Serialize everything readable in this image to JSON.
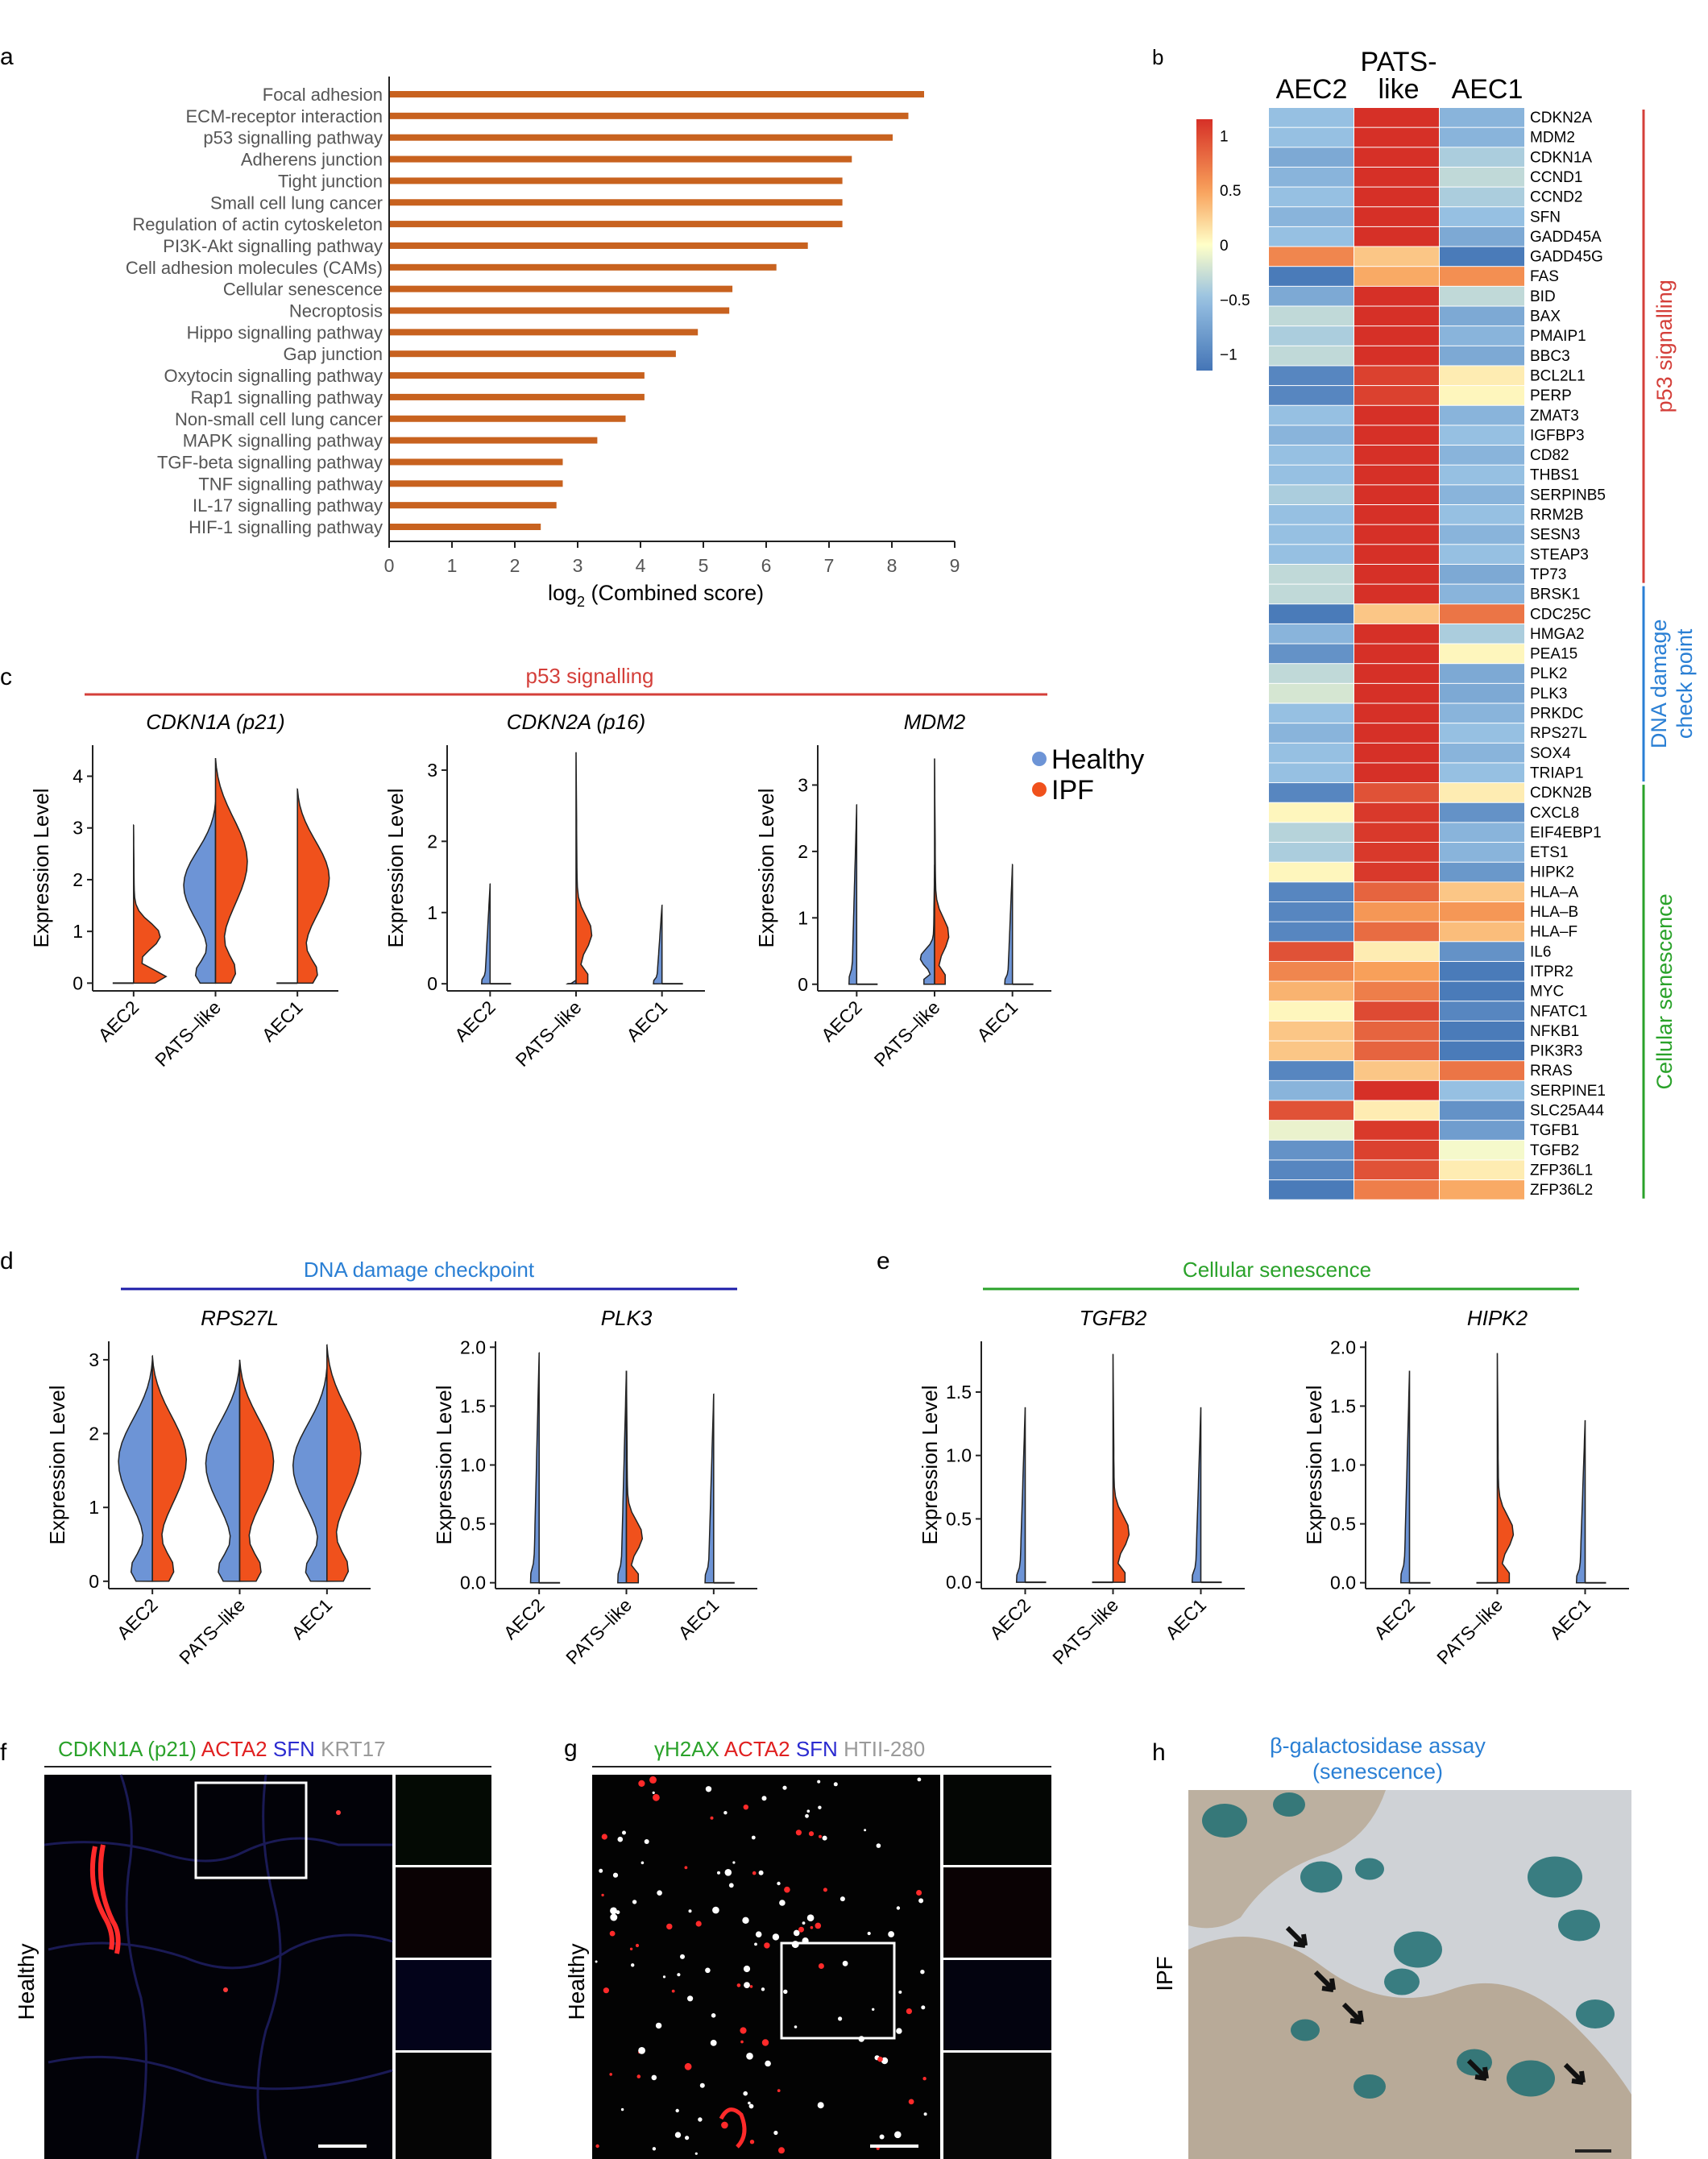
{
  "panels": {
    "a": {
      "letter": "a"
    },
    "b": {
      "letter": "b"
    },
    "c": {
      "letter": "c"
    },
    "d": {
      "letter": "d"
    },
    "e": {
      "letter": "e"
    },
    "f": {
      "letter": "f"
    },
    "g": {
      "letter": "g"
    },
    "h": {
      "letter": "h"
    }
  },
  "colors": {
    "bar": "#c8621f",
    "healthy": "#6d94d6",
    "ipf": "#f0511c",
    "red_line": "#d43f3a",
    "blue_line": "#1c1ca8",
    "green_line": "#2aa22a",
    "blue_text": "#2a7fd4",
    "green_text": "#2aa22a",
    "red_text": "#d43f3a"
  },
  "chart_data": [
    {
      "id": "a",
      "type": "bar",
      "orientation": "horizontal",
      "categories": [
        "Focal adhesion",
        "ECM-receptor interaction",
        "p53 signalling pathway",
        "Adherens junction",
        "Tight junction",
        "Small cell lung cancer",
        "Regulation of actin cytoskeleton",
        "PI3K-Akt signalling pathway",
        "Cell adhesion molecules (CAMs)",
        "Cellular senescence",
        "Necroptosis",
        "Hippo signalling pathway",
        "Gap junction",
        "Oxytocin signalling pathway",
        "Rap1 signalling pathway",
        "Non-small cell lung cancer",
        "MAPK signalling pathway",
        "TGF-beta signalling pathway",
        "TNF signalling pathway",
        "IL-17 signalling pathway",
        "HIF-1 signalling pathway"
      ],
      "values": [
        8.5,
        8.25,
        8.0,
        7.35,
        7.2,
        7.2,
        7.2,
        6.65,
        6.15,
        5.45,
        5.4,
        4.9,
        4.55,
        4.05,
        4.05,
        3.75,
        3.3,
        2.75,
        2.75,
        2.65,
        2.4
      ],
      "xlabel": "log",
      "xlabel_sub": "2",
      "xlabel_rest": " (Combined score)",
      "xlim": [
        0,
        9
      ],
      "xticks": [
        "0",
        "1",
        "2",
        "3",
        "4",
        "5",
        "6",
        "7",
        "8",
        "9"
      ]
    },
    {
      "id": "b",
      "type": "heatmap",
      "columns": [
        "AEC2",
        "PATS-\nlike",
        "AEC1"
      ],
      "column_line1": [
        "AEC2",
        "PATS-",
        "AEC1"
      ],
      "column_line2": [
        "",
        "like",
        ""
      ],
      "legend_ticks": [
        "1",
        "0.5",
        "0",
        "−0.5",
        "−1"
      ],
      "legend_range": [
        -1.15,
        1.15
      ],
      "rows": [
        "CDKN2A",
        "MDM2",
        "CDKN1A",
        "CCND1",
        "CCND2",
        "SFN",
        "GADD45A",
        "GADD45G",
        "FAS",
        "BID",
        "BAX",
        "PMAIP1",
        "BBC3",
        "BCL2L1",
        "PERP",
        "ZMAT3",
        "IGFBP3",
        "CD82",
        "THBS1",
        "SERPINB5",
        "RRM2B",
        "SESN3",
        "STEAP3",
        "TP73",
        "BRSK1",
        "CDC25C",
        "HMGA2",
        "PEA15",
        "PLK2",
        "PLK3",
        "PRKDC",
        "RPS27L",
        "SOX4",
        "TRIAP1",
        "CDKN2B",
        "CXCL8",
        "EIF4EBP1",
        "ETS1",
        "HIPK2",
        "HLA–A",
        "HLA–B",
        "HLA–F",
        "IL6",
        "ITPR2",
        "MYC",
        "NFATC1",
        "NFKB1",
        "PIK3R3",
        "RRAS",
        "SERPINE1",
        "SLC25A44",
        "TGFB1",
        "TGFB2",
        "ZFP36L1",
        "ZFP36L2"
      ],
      "values": [
        [
          -0.5,
          1.15,
          -0.6
        ],
        [
          -0.5,
          1.15,
          -0.6
        ],
        [
          -0.7,
          1.15,
          -0.4
        ],
        [
          -0.6,
          1.15,
          -0.3
        ],
        [
          -0.5,
          1.15,
          -0.4
        ],
        [
          -0.6,
          1.15,
          -0.5
        ],
        [
          -0.5,
          1.15,
          -0.7
        ],
        [
          0.65,
          0.3,
          -1.1
        ],
        [
          -1.1,
          0.45,
          0.6
        ],
        [
          -0.7,
          1.15,
          -0.3
        ],
        [
          -0.3,
          1.15,
          -0.7
        ],
        [
          -0.4,
          1.15,
          -0.6
        ],
        [
          -0.3,
          1.15,
          -0.7
        ],
        [
          -1.0,
          1.05,
          0.1
        ],
        [
          -1.0,
          1.05,
          0.05
        ],
        [
          -0.5,
          1.15,
          -0.6
        ],
        [
          -0.6,
          1.15,
          -0.5
        ],
        [
          -0.5,
          1.15,
          -0.6
        ],
        [
          -0.5,
          1.15,
          -0.5
        ],
        [
          -0.4,
          1.15,
          -0.6
        ],
        [
          -0.5,
          1.15,
          -0.5
        ],
        [
          -0.5,
          1.15,
          -0.6
        ],
        [
          -0.5,
          1.15,
          -0.5
        ],
        [
          -0.3,
          1.15,
          -0.7
        ],
        [
          -0.3,
          1.15,
          -0.6
        ],
        [
          -1.1,
          0.3,
          0.75
        ],
        [
          -0.6,
          1.15,
          -0.4
        ],
        [
          -0.9,
          1.15,
          0.05
        ],
        [
          -0.3,
          1.15,
          -0.7
        ],
        [
          -0.2,
          1.15,
          -0.7
        ],
        [
          -0.5,
          1.15,
          -0.6
        ],
        [
          -0.6,
          1.15,
          -0.5
        ],
        [
          -0.5,
          1.15,
          -0.6
        ],
        [
          -0.5,
          1.15,
          -0.5
        ],
        [
          -1.0,
          0.95,
          0.1
        ],
        [
          0.05,
          1.1,
          -0.9
        ],
        [
          -0.35,
          1.1,
          -0.6
        ],
        [
          -0.4,
          1.1,
          -0.6
        ],
        [
          0.05,
          1.1,
          -0.85
        ],
        [
          -1.0,
          0.85,
          0.3
        ],
        [
          -1.0,
          0.55,
          0.55
        ],
        [
          -1.0,
          0.8,
          0.35
        ],
        [
          0.95,
          0.1,
          -0.9
        ],
        [
          0.65,
          0.5,
          -1.1
        ],
        [
          0.4,
          0.7,
          -1.1
        ],
        [
          0.05,
          1.0,
          -1.0
        ],
        [
          0.3,
          0.85,
          -1.1
        ],
        [
          0.3,
          0.85,
          -1.1
        ],
        [
          -1.0,
          0.3,
          0.75
        ],
        [
          -0.6,
          1.15,
          -0.5
        ],
        [
          0.95,
          0.1,
          -0.9
        ],
        [
          -0.1,
          1.1,
          -0.8
        ],
        [
          -0.9,
          1.05,
          -0.05
        ],
        [
          -1.0,
          0.95,
          0.1
        ],
        [
          -1.1,
          0.7,
          0.45
        ]
      ],
      "groups": [
        {
          "label": "p53 signalling",
          "from": 0,
          "to": 23
        },
        {
          "label_line1": "DNA damage",
          "label_line2": "check point",
          "from": 24,
          "to": 33
        },
        {
          "label": "Cellular senescence",
          "from": 34,
          "to": 54
        }
      ]
    },
    {
      "id": "c",
      "type": "violin",
      "header": "p53 signalling",
      "legend": [
        {
          "label": "Healthy"
        },
        {
          "label": "IPF"
        }
      ],
      "ylabel": "Expression Level",
      "x_categories": [
        "AEC2",
        "PATS–like",
        "AEC1"
      ],
      "plots": [
        {
          "gene": "CDKN1A (p21)",
          "ylim": [
            -0.15,
            4.6
          ],
          "yticks": [
            "0",
            "1",
            "2",
            "3",
            "4"
          ],
          "maxes": [
            [
              0.05,
              3.05
            ],
            [
              3.5,
              4.35
            ],
            [
              0.05,
              3.75
            ]
          ]
        },
        {
          "gene": "CDKN2A (p16)",
          "ylim": [
            -0.1,
            3.35
          ],
          "yticks": [
            "0",
            "1",
            "2",
            "3"
          ],
          "maxes": [
            [
              1.4,
              0.02
            ],
            [
              0.05,
              3.25
            ],
            [
              1.1,
              0.02
            ]
          ]
        },
        {
          "gene": "MDM2",
          "ylim": [
            -0.1,
            3.6
          ],
          "yticks": [
            "0",
            "1",
            "2",
            "3"
          ],
          "maxes": [
            [
              2.7,
              0.02
            ],
            [
              1.8,
              3.4
            ],
            [
              1.8,
              0.02
            ]
          ]
        }
      ]
    },
    {
      "id": "d",
      "type": "violin",
      "header": "DNA damage checkpoint",
      "ylabel": "Expression Level",
      "x_categories": [
        "AEC2",
        "PATS–like",
        "AEC1"
      ],
      "plots": [
        {
          "gene": "RPS27L",
          "ylim": [
            -0.1,
            3.25
          ],
          "yticks": [
            "0",
            "1",
            "2",
            "3"
          ],
          "maxes": [
            [
              3.0,
              3.05
            ],
            [
              2.95,
              3.0
            ],
            [
              2.9,
              3.2
            ]
          ]
        },
        {
          "gene": "PLK3",
          "ylim": [
            -0.05,
            2.05
          ],
          "yticks": [
            "0.0",
            "0.5",
            "1.0",
            "1.5",
            "2.0"
          ],
          "maxes": [
            [
              1.95,
              0.02
            ],
            [
              1.8,
              1.8
            ],
            [
              1.6,
              0.02
            ]
          ]
        }
      ]
    },
    {
      "id": "e",
      "type": "violin",
      "header": "Cellular senescence",
      "ylabel": "Expression Level",
      "x_categories": [
        "AEC2",
        "PATS–like",
        "AEC1"
      ],
      "plots": [
        {
          "gene": "TGFB2",
          "ylim": [
            -0.05,
            1.9
          ],
          "yticks": [
            "0.0",
            "0.5",
            "1.0",
            "1.5"
          ],
          "maxes": [
            [
              1.38,
              0.02
            ],
            [
              0.02,
              1.8
            ],
            [
              1.38,
              0.02
            ]
          ]
        },
        {
          "gene": "HIPK2",
          "ylim": [
            -0.05,
            2.05
          ],
          "yticks": [
            "0.0",
            "0.5",
            "1.0",
            "1.5",
            "2.0"
          ],
          "maxes": [
            [
              1.8,
              0.02
            ],
            [
              0.02,
              1.95
            ],
            [
              1.38,
              0.02
            ]
          ]
        }
      ]
    }
  ],
  "images": {
    "f": {
      "stain_parts": [
        "CDKN1A (p21)",
        "ACTA2",
        "SFN",
        "KRT17"
      ],
      "side_label": "Healthy"
    },
    "g": {
      "stain_parts": [
        "γH2AX",
        "ACTA2",
        "SFN",
        "HTII-280"
      ],
      "side_label": "Healthy"
    },
    "h": {
      "title_line1": "β-galactosidase assay",
      "title_line2": "(senescence)",
      "side_label": "IPF"
    }
  }
}
